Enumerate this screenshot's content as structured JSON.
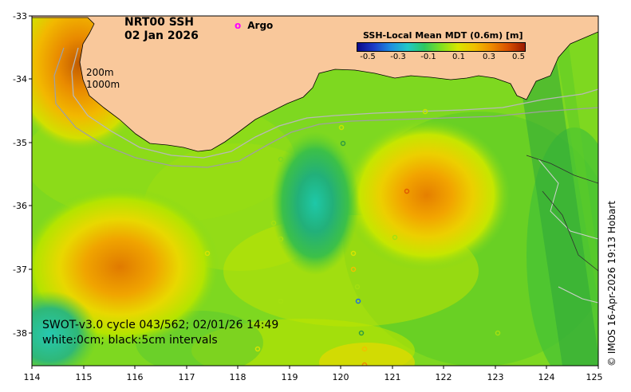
{
  "map": {
    "title_line1": "NRT00 SSH",
    "title_line2": "02 Jan 2026",
    "legend_argo_marker": "o",
    "legend_argo_label": "Argo",
    "colorbar_title": "SSH-Local Mean MDT (0.6m) [m]",
    "colorbar_ticks": [
      "-0.5",
      "-0.3",
      "-0.1",
      "0.1",
      "0.3",
      "0.5"
    ],
    "contour_labels": [
      "200m",
      "1000m"
    ],
    "swot_line1": "SWOT-v3.0 cycle 043/562; 02/01/26 14:49",
    "swot_line2": "white:0cm; black:5cm intervals",
    "credit": "© IMOS 16-Apr-2026 19:13 Hobart",
    "x_ticks": [
      "114",
      "115",
      "116",
      "117",
      "118",
      "119",
      "120",
      "121",
      "122",
      "123",
      "124",
      "125"
    ],
    "y_ticks": [
      "-33",
      "-34",
      "-35",
      "-36",
      "-37",
      "-38"
    ],
    "land_color": "#f9c89b",
    "argo_color": "#ff00ff"
  }
}
